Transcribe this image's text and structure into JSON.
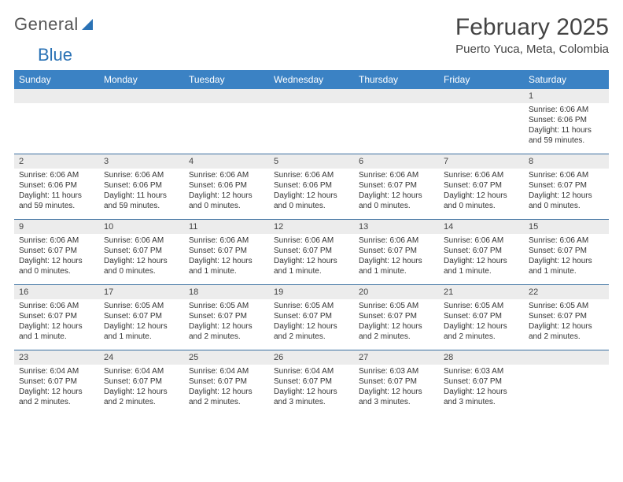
{
  "logo": {
    "text1": "General",
    "text2": "Blue"
  },
  "title": "February 2025",
  "location": "Puerto Yuca, Meta, Colombia",
  "colors": {
    "header_bg": "#3b82c4",
    "header_text": "#ffffff",
    "daynum_bg": "#ececec",
    "border": "#3b6fa0",
    "text": "#333333"
  },
  "day_names": [
    "Sunday",
    "Monday",
    "Tuesday",
    "Wednesday",
    "Thursday",
    "Friday",
    "Saturday"
  ],
  "weeks": [
    [
      {
        "n": "",
        "sr": "",
        "ss": "",
        "dl": ""
      },
      {
        "n": "",
        "sr": "",
        "ss": "",
        "dl": ""
      },
      {
        "n": "",
        "sr": "",
        "ss": "",
        "dl": ""
      },
      {
        "n": "",
        "sr": "",
        "ss": "",
        "dl": ""
      },
      {
        "n": "",
        "sr": "",
        "ss": "",
        "dl": ""
      },
      {
        "n": "",
        "sr": "",
        "ss": "",
        "dl": ""
      },
      {
        "n": "1",
        "sr": "Sunrise: 6:06 AM",
        "ss": "Sunset: 6:06 PM",
        "dl": "Daylight: 11 hours and 59 minutes."
      }
    ],
    [
      {
        "n": "2",
        "sr": "Sunrise: 6:06 AM",
        "ss": "Sunset: 6:06 PM",
        "dl": "Daylight: 11 hours and 59 minutes."
      },
      {
        "n": "3",
        "sr": "Sunrise: 6:06 AM",
        "ss": "Sunset: 6:06 PM",
        "dl": "Daylight: 11 hours and 59 minutes."
      },
      {
        "n": "4",
        "sr": "Sunrise: 6:06 AM",
        "ss": "Sunset: 6:06 PM",
        "dl": "Daylight: 12 hours and 0 minutes."
      },
      {
        "n": "5",
        "sr": "Sunrise: 6:06 AM",
        "ss": "Sunset: 6:06 PM",
        "dl": "Daylight: 12 hours and 0 minutes."
      },
      {
        "n": "6",
        "sr": "Sunrise: 6:06 AM",
        "ss": "Sunset: 6:07 PM",
        "dl": "Daylight: 12 hours and 0 minutes."
      },
      {
        "n": "7",
        "sr": "Sunrise: 6:06 AM",
        "ss": "Sunset: 6:07 PM",
        "dl": "Daylight: 12 hours and 0 minutes."
      },
      {
        "n": "8",
        "sr": "Sunrise: 6:06 AM",
        "ss": "Sunset: 6:07 PM",
        "dl": "Daylight: 12 hours and 0 minutes."
      }
    ],
    [
      {
        "n": "9",
        "sr": "Sunrise: 6:06 AM",
        "ss": "Sunset: 6:07 PM",
        "dl": "Daylight: 12 hours and 0 minutes."
      },
      {
        "n": "10",
        "sr": "Sunrise: 6:06 AM",
        "ss": "Sunset: 6:07 PM",
        "dl": "Daylight: 12 hours and 0 minutes."
      },
      {
        "n": "11",
        "sr": "Sunrise: 6:06 AM",
        "ss": "Sunset: 6:07 PM",
        "dl": "Daylight: 12 hours and 1 minute."
      },
      {
        "n": "12",
        "sr": "Sunrise: 6:06 AM",
        "ss": "Sunset: 6:07 PM",
        "dl": "Daylight: 12 hours and 1 minute."
      },
      {
        "n": "13",
        "sr": "Sunrise: 6:06 AM",
        "ss": "Sunset: 6:07 PM",
        "dl": "Daylight: 12 hours and 1 minute."
      },
      {
        "n": "14",
        "sr": "Sunrise: 6:06 AM",
        "ss": "Sunset: 6:07 PM",
        "dl": "Daylight: 12 hours and 1 minute."
      },
      {
        "n": "15",
        "sr": "Sunrise: 6:06 AM",
        "ss": "Sunset: 6:07 PM",
        "dl": "Daylight: 12 hours and 1 minute."
      }
    ],
    [
      {
        "n": "16",
        "sr": "Sunrise: 6:06 AM",
        "ss": "Sunset: 6:07 PM",
        "dl": "Daylight: 12 hours and 1 minute."
      },
      {
        "n": "17",
        "sr": "Sunrise: 6:05 AM",
        "ss": "Sunset: 6:07 PM",
        "dl": "Daylight: 12 hours and 1 minute."
      },
      {
        "n": "18",
        "sr": "Sunrise: 6:05 AM",
        "ss": "Sunset: 6:07 PM",
        "dl": "Daylight: 12 hours and 2 minutes."
      },
      {
        "n": "19",
        "sr": "Sunrise: 6:05 AM",
        "ss": "Sunset: 6:07 PM",
        "dl": "Daylight: 12 hours and 2 minutes."
      },
      {
        "n": "20",
        "sr": "Sunrise: 6:05 AM",
        "ss": "Sunset: 6:07 PM",
        "dl": "Daylight: 12 hours and 2 minutes."
      },
      {
        "n": "21",
        "sr": "Sunrise: 6:05 AM",
        "ss": "Sunset: 6:07 PM",
        "dl": "Daylight: 12 hours and 2 minutes."
      },
      {
        "n": "22",
        "sr": "Sunrise: 6:05 AM",
        "ss": "Sunset: 6:07 PM",
        "dl": "Daylight: 12 hours and 2 minutes."
      }
    ],
    [
      {
        "n": "23",
        "sr": "Sunrise: 6:04 AM",
        "ss": "Sunset: 6:07 PM",
        "dl": "Daylight: 12 hours and 2 minutes."
      },
      {
        "n": "24",
        "sr": "Sunrise: 6:04 AM",
        "ss": "Sunset: 6:07 PM",
        "dl": "Daylight: 12 hours and 2 minutes."
      },
      {
        "n": "25",
        "sr": "Sunrise: 6:04 AM",
        "ss": "Sunset: 6:07 PM",
        "dl": "Daylight: 12 hours and 2 minutes."
      },
      {
        "n": "26",
        "sr": "Sunrise: 6:04 AM",
        "ss": "Sunset: 6:07 PM",
        "dl": "Daylight: 12 hours and 3 minutes."
      },
      {
        "n": "27",
        "sr": "Sunrise: 6:03 AM",
        "ss": "Sunset: 6:07 PM",
        "dl": "Daylight: 12 hours and 3 minutes."
      },
      {
        "n": "28",
        "sr": "Sunrise: 6:03 AM",
        "ss": "Sunset: 6:07 PM",
        "dl": "Daylight: 12 hours and 3 minutes."
      },
      {
        "n": "",
        "sr": "",
        "ss": "",
        "dl": ""
      }
    ]
  ]
}
